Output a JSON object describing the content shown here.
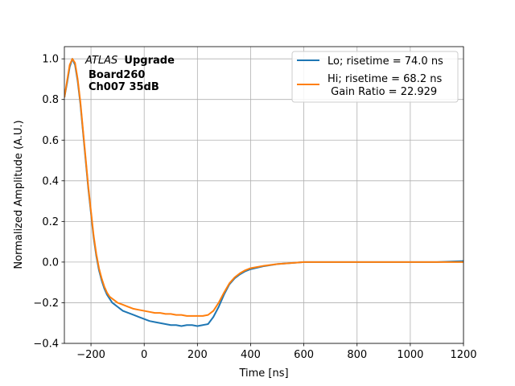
{
  "chart_data": {
    "type": "line",
    "xlabel": "Time [ns]",
    "ylabel": "Normalized Amplitude (A.U.)",
    "xlim": [
      -300,
      1200
    ],
    "ylim": [
      -0.4,
      1.06
    ],
    "xticks": [
      -200,
      0,
      200,
      400,
      600,
      800,
      1000,
      1200
    ],
    "xtick_labels": [
      "−200",
      "0",
      "200",
      "400",
      "600",
      "800",
      "1000",
      "1200"
    ],
    "yticks": [
      -0.4,
      -0.2,
      0.0,
      0.2,
      0.4,
      0.6,
      0.8,
      1.0
    ],
    "ytick_labels": [
      "−0.4",
      "−0.2",
      "0.0",
      "0.2",
      "0.4",
      "0.6",
      "0.8",
      "1.0"
    ],
    "grid": true,
    "legend_position": "top-right",
    "annotation": {
      "italic_part": "ATLAS",
      "bold_part": "Upgrade",
      "line2": "Board260",
      "line3": "Ch007 35dB"
    },
    "series": [
      {
        "name": "Lo; risetime = 74.0 ns",
        "color": "#1f77b4",
        "x": [
          -300,
          -290,
          -280,
          -270,
          -260,
          -250,
          -240,
          -230,
          -220,
          -210,
          -200,
          -190,
          -180,
          -170,
          -160,
          -150,
          -140,
          -130,
          -120,
          -110,
          -100,
          -90,
          -80,
          -60,
          -40,
          -20,
          0,
          20,
          40,
          60,
          80,
          100,
          120,
          140,
          160,
          180,
          200,
          220,
          240,
          260,
          280,
          300,
          320,
          340,
          360,
          380,
          400,
          450,
          500,
          550,
          600,
          700,
          800,
          900,
          1000,
          1100,
          1200
        ],
        "y": [
          0.81,
          0.88,
          0.96,
          1.0,
          0.97,
          0.89,
          0.78,
          0.64,
          0.5,
          0.36,
          0.24,
          0.12,
          0.03,
          -0.04,
          -0.09,
          -0.13,
          -0.16,
          -0.18,
          -0.2,
          -0.21,
          -0.22,
          -0.23,
          -0.24,
          -0.25,
          -0.26,
          -0.27,
          -0.28,
          -0.29,
          -0.295,
          -0.3,
          -0.305,
          -0.31,
          -0.31,
          -0.315,
          -0.31,
          -0.31,
          -0.315,
          -0.31,
          -0.305,
          -0.27,
          -0.22,
          -0.16,
          -0.11,
          -0.08,
          -0.06,
          -0.045,
          -0.035,
          -0.02,
          -0.01,
          -0.005,
          0.0,
          0.0,
          0.0,
          0.0,
          0.0,
          0.0,
          0.005
        ]
      },
      {
        "name": "Hi; risetime = 68.2 ns\n Gain Ratio = 22.929",
        "color": "#ff7f0e",
        "x": [
          -300,
          -290,
          -280,
          -270,
          -260,
          -250,
          -240,
          -230,
          -220,
          -210,
          -200,
          -190,
          -180,
          -170,
          -160,
          -150,
          -140,
          -130,
          -120,
          -110,
          -100,
          -90,
          -80,
          -60,
          -40,
          -20,
          0,
          20,
          40,
          60,
          80,
          100,
          120,
          140,
          160,
          180,
          200,
          220,
          240,
          260,
          280,
          300,
          320,
          340,
          360,
          380,
          400,
          450,
          500,
          550,
          600,
          700,
          800,
          900,
          1000,
          1100,
          1200
        ],
        "y": [
          0.81,
          0.89,
          0.97,
          1.0,
          0.98,
          0.9,
          0.79,
          0.65,
          0.51,
          0.37,
          0.25,
          0.13,
          0.04,
          -0.03,
          -0.08,
          -0.12,
          -0.15,
          -0.17,
          -0.18,
          -0.19,
          -0.2,
          -0.205,
          -0.21,
          -0.22,
          -0.23,
          -0.235,
          -0.24,
          -0.245,
          -0.25,
          -0.25,
          -0.255,
          -0.255,
          -0.26,
          -0.26,
          -0.265,
          -0.265,
          -0.265,
          -0.265,
          -0.26,
          -0.24,
          -0.2,
          -0.15,
          -0.105,
          -0.075,
          -0.055,
          -0.04,
          -0.03,
          -0.018,
          -0.01,
          -0.005,
          0.0,
          0.0,
          0.0,
          0.0,
          0.0,
          0.0,
          0.0
        ]
      }
    ]
  }
}
